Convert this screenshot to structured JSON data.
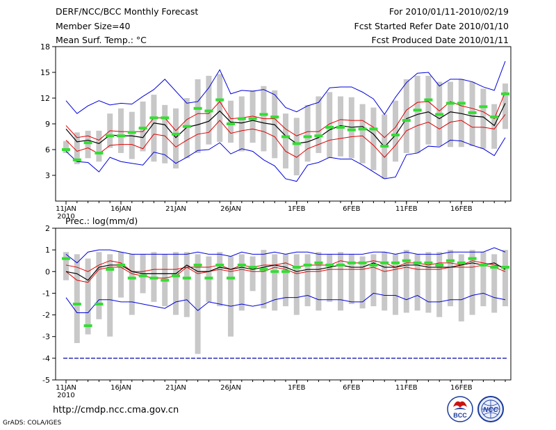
{
  "header": {
    "title": "DERF/NCC/BCC Monthly Forecast",
    "member_size": "Member Size=40",
    "variable": "Mean Surf. Temp.: °C",
    "period": "For 2010/01/11-2010/02/19",
    "fcst_start": "Fcst Started Refer Date 2010/01/10",
    "fcst_produced": "Fcst Produced Date 2010/01/11"
  },
  "footer": {
    "url": "http://cmdp.ncc.cma.gov.cn",
    "grads": "GrADS: COLA/IGES"
  },
  "logos": {
    "bcc": "BCC",
    "ncc": "NCC"
  },
  "colors": {
    "box": "#c8c8c8",
    "median": "#000000",
    "quartile": "#e00000",
    "extreme": "#0000dd",
    "observed": "#33dd33",
    "ref_line": "#0000aa"
  },
  "chart_data": [
    {
      "type": "box-line",
      "title": "Mean Surf. Temp.: °C",
      "x_start": "2010-01-11",
      "x_ticks": [
        "11JAN\n2010",
        "16JAN",
        "21JAN",
        "26JAN",
        "1FEB",
        "6FEB",
        "11FEB",
        "16FEB"
      ],
      "ylim": [
        0,
        18
      ],
      "y_ticks": [
        3,
        6,
        9,
        12,
        15,
        18
      ],
      "box_low": [
        5.6,
        4.3,
        5.0,
        4.6,
        6.2,
        5.6,
        4.9,
        5.8,
        4.6,
        4.4,
        3.8,
        5.0,
        5.6,
        6.6,
        6.9,
        6.8,
        5.8,
        6.8,
        5.8,
        5.0,
        3.8,
        3.0,
        4.6,
        5.6,
        5.0,
        5.2,
        5.0,
        4.4,
        3.6,
        2.6,
        4.6,
        5.6,
        5.6,
        6.6,
        6.4,
        6.3,
        6.3,
        6.4,
        6.1,
        6.1,
        8.4
      ],
      "box_high": [
        7.0,
        8.0,
        8.2,
        8.2,
        10.2,
        10.8,
        10.4,
        11.6,
        12.4,
        11.2,
        10.8,
        12.0,
        14.2,
        14.6,
        14.8,
        11.7,
        12.2,
        12.9,
        13.4,
        12.9,
        10.2,
        9.7,
        11.2,
        12.2,
        12.7,
        12.2,
        12.1,
        11.3,
        10.9,
        10.1,
        11.7,
        14.2,
        14.6,
        14.6,
        13.9,
        13.9,
        14.2,
        13.9,
        13.1,
        11.3,
        13.7
      ],
      "median": [
        8.4,
        6.9,
        7.1,
        6.7,
        7.7,
        7.6,
        7.6,
        7.4,
        9.1,
        8.9,
        7.4,
        8.6,
        8.9,
        9.3,
        10.5,
        9.2,
        9.1,
        9.4,
        9.1,
        8.9,
        7.6,
        6.7,
        6.9,
        7.4,
        8.3,
        8.8,
        8.6,
        8.7,
        7.8,
        6.3,
        7.7,
        9.6,
        10.1,
        10.4,
        9.6,
        10.4,
        10.2,
        9.9,
        9.8,
        8.8,
        11.4
      ],
      "q_high": [
        8.8,
        7.4,
        7.6,
        7.1,
        8.2,
        8.1,
        8.1,
        8.1,
        9.7,
        9.7,
        8.2,
        9.5,
        10.2,
        10.2,
        11.6,
        9.6,
        9.7,
        9.9,
        9.6,
        9.6,
        8.4,
        7.6,
        8.1,
        8.1,
        9.0,
        9.5,
        9.4,
        9.4,
        8.6,
        7.4,
        8.6,
        10.6,
        11.5,
        11.6,
        10.5,
        11.6,
        11.1,
        10.8,
        10.4,
        9.6,
        12.7
      ],
      "q_low": [
        7.1,
        5.8,
        6.2,
        5.5,
        6.5,
        6.6,
        6.6,
        6.1,
        7.8,
        7.6,
        6.3,
        7.1,
        7.8,
        8.0,
        9.4,
        7.9,
        8.2,
        8.4,
        8.1,
        7.5,
        5.8,
        5.1,
        6.1,
        6.6,
        7.1,
        7.3,
        7.5,
        7.6,
        6.5,
        5.1,
        6.5,
        8.2,
        8.8,
        9.2,
        8.4,
        9.2,
        9.4,
        8.6,
        8.6,
        8.4,
        10.1
      ],
      "max": [
        11.7,
        10.2,
        11.1,
        11.7,
        11.2,
        11.4,
        11.3,
        12.2,
        13.0,
        14.2,
        12.8,
        11.4,
        11.6,
        13.2,
        15.3,
        12.5,
        12.9,
        12.8,
        13.0,
        12.4,
        10.9,
        10.4,
        11.1,
        11.5,
        13.2,
        13.3,
        13.3,
        12.7,
        11.9,
        10.1,
        12.1,
        13.8,
        14.9,
        15.0,
        13.4,
        14.2,
        14.2,
        13.9,
        13.3,
        12.9,
        16.3
      ],
      "min": [
        5.8,
        4.6,
        4.5,
        3.4,
        5.1,
        4.6,
        4.4,
        4.2,
        5.7,
        5.4,
        4.4,
        5.1,
        5.9,
        6.0,
        6.8,
        5.5,
        6.1,
        5.8,
        4.8,
        4.1,
        2.6,
        2.3,
        4.2,
        4.5,
        5.1,
        4.9,
        4.9,
        4.2,
        3.4,
        2.6,
        2.8,
        5.4,
        5.6,
        6.4,
        6.3,
        7.1,
        7.0,
        6.5,
        6.1,
        5.3,
        7.4
      ],
      "observed": [
        6.0,
        4.8,
        6.8,
        5.6,
        7.6,
        7.6,
        8.0,
        8.5,
        9.7,
        9.7,
        7.8,
        8.7,
        10.8,
        10.5,
        11.8,
        9.0,
        9.6,
        9.6,
        10.1,
        9.8,
        7.5,
        6.7,
        7.5,
        7.6,
        8.6,
        8.6,
        8.3,
        8.4,
        8.4,
        6.4,
        7.7,
        9.4,
        10.6,
        11.8,
        10.1,
        11.4,
        11.4,
        10.3,
        11.0,
        9.8,
        12.5
      ]
    },
    {
      "type": "box-line",
      "title": "Prec.: log(mm/d)",
      "x_start": "2010-01-11",
      "x_ticks": [
        "11JAN\n2010",
        "16JAN",
        "21JAN",
        "26JAN",
        "1FEB",
        "6FEB",
        "11FEB",
        "16FEB"
      ],
      "ylim": [
        -5,
        2
      ],
      "y_ticks": [
        -5,
        -4,
        -3,
        -2,
        -1,
        0,
        1,
        2
      ],
      "reference_line": -4,
      "box_low": [
        -0.4,
        -3.3,
        -2.9,
        -2.2,
        -3.0,
        -1.2,
        -2.0,
        -1.0,
        -1.4,
        -1.6,
        -2.0,
        -2.1,
        -3.8,
        -1.4,
        -1.6,
        -3.0,
        -1.8,
        -0.9,
        -1.7,
        -1.8,
        -1.6,
        -2.0,
        -1.6,
        -1.8,
        -1.4,
        -1.8,
        -1.5,
        -1.7,
        -1.6,
        -1.8,
        -2.0,
        -1.9,
        -1.8,
        -1.9,
        -2.1,
        -1.6,
        -2.3,
        -2.0,
        -1.6,
        -1.9,
        -1.6
      ],
      "box_high": [
        0.9,
        0.8,
        0.6,
        0.9,
        0.8,
        0.9,
        0.8,
        0.8,
        0.9,
        0.8,
        0.9,
        0.9,
        0.8,
        0.7,
        0.9,
        0.7,
        0.8,
        0.7,
        1.0,
        0.8,
        0.8,
        0.8,
        0.8,
        0.9,
        0.8,
        0.9,
        0.8,
        0.7,
        0.8,
        0.9,
        0.8,
        1.0,
        0.8,
        0.9,
        0.9,
        1.0,
        0.8,
        1.0,
        0.9,
        0.8,
        1.0
      ],
      "median": [
        0.0,
        -0.1,
        -0.4,
        0.2,
        0.3,
        0.3,
        0.0,
        -0.1,
        -0.1,
        -0.1,
        -0.1,
        0.3,
        0.0,
        0.0,
        0.2,
        0.1,
        0.2,
        0.1,
        0.2,
        0.3,
        0.2,
        0.0,
        0.1,
        0.1,
        0.2,
        0.3,
        0.2,
        0.2,
        0.4,
        0.2,
        0.2,
        0.3,
        0.3,
        0.2,
        0.2,
        0.2,
        0.3,
        0.4,
        0.3,
        0.4,
        0.1
      ],
      "q_high": [
        0.3,
        0.2,
        0.0,
        0.3,
        0.5,
        0.4,
        0.0,
        0.0,
        0.1,
        0.1,
        0.1,
        0.2,
        0.2,
        0.2,
        0.3,
        0.1,
        0.3,
        0.2,
        0.3,
        0.3,
        0.4,
        0.2,
        0.3,
        0.3,
        0.3,
        0.5,
        0.4,
        0.4,
        0.5,
        0.4,
        0.2,
        0.4,
        0.4,
        0.3,
        0.4,
        0.4,
        0.3,
        0.5,
        0.4,
        0.3,
        0.2
      ],
      "q_low": [
        0.0,
        -0.4,
        -0.5,
        0.1,
        0.2,
        0.2,
        -0.1,
        -0.2,
        -0.3,
        -0.3,
        -0.2,
        0.2,
        -0.1,
        0.0,
        0.1,
        0.0,
        0.1,
        0.0,
        0.0,
        0.2,
        0.1,
        -0.1,
        0.0,
        0.0,
        0.1,
        0.1,
        0.1,
        0.1,
        0.2,
        0.0,
        0.1,
        0.2,
        0.1,
        0.1,
        0.1,
        0.2,
        0.2,
        0.2,
        0.3,
        0.2,
        0.0
      ],
      "max": [
        0.8,
        0.4,
        0.9,
        1.0,
        1.0,
        0.9,
        0.8,
        0.8,
        0.8,
        0.8,
        0.8,
        0.8,
        0.9,
        0.8,
        0.8,
        0.7,
        0.9,
        0.8,
        0.8,
        0.9,
        0.8,
        0.9,
        0.9,
        0.8,
        0.8,
        0.8,
        0.8,
        0.8,
        0.9,
        0.9,
        0.8,
        0.9,
        0.8,
        0.8,
        0.8,
        0.9,
        0.9,
        0.9,
        0.9,
        1.1,
        0.9
      ],
      "min": [
        -1.2,
        -1.9,
        -1.9,
        -1.3,
        -1.3,
        -1.4,
        -1.4,
        -1.5,
        -1.6,
        -1.7,
        -1.4,
        -1.3,
        -1.8,
        -1.4,
        -1.5,
        -1.6,
        -1.5,
        -1.6,
        -1.5,
        -1.3,
        -1.2,
        -1.2,
        -1.1,
        -1.3,
        -1.3,
        -1.3,
        -1.4,
        -1.4,
        -1.0,
        -1.1,
        -1.1,
        -1.3,
        -1.1,
        -1.4,
        -1.4,
        -1.3,
        -1.3,
        -1.1,
        -1.0,
        -1.2,
        -1.3
      ],
      "observed": [
        0.6,
        -1.5,
        -2.5,
        -1.5,
        0.1,
        0.3,
        -0.3,
        -0.2,
        -0.3,
        -0.4,
        -0.2,
        -0.3,
        0.3,
        -0.3,
        0.3,
        -0.3,
        0.3,
        0.2,
        0.1,
        0.0,
        0.0,
        0.2,
        0.3,
        0.4,
        0.3,
        0.3,
        0.4,
        0.4,
        0.3,
        0.4,
        0.4,
        0.5,
        0.4,
        0.4,
        0.3,
        0.5,
        0.4,
        0.6,
        0.3,
        0.2,
        0.2
      ]
    }
  ]
}
